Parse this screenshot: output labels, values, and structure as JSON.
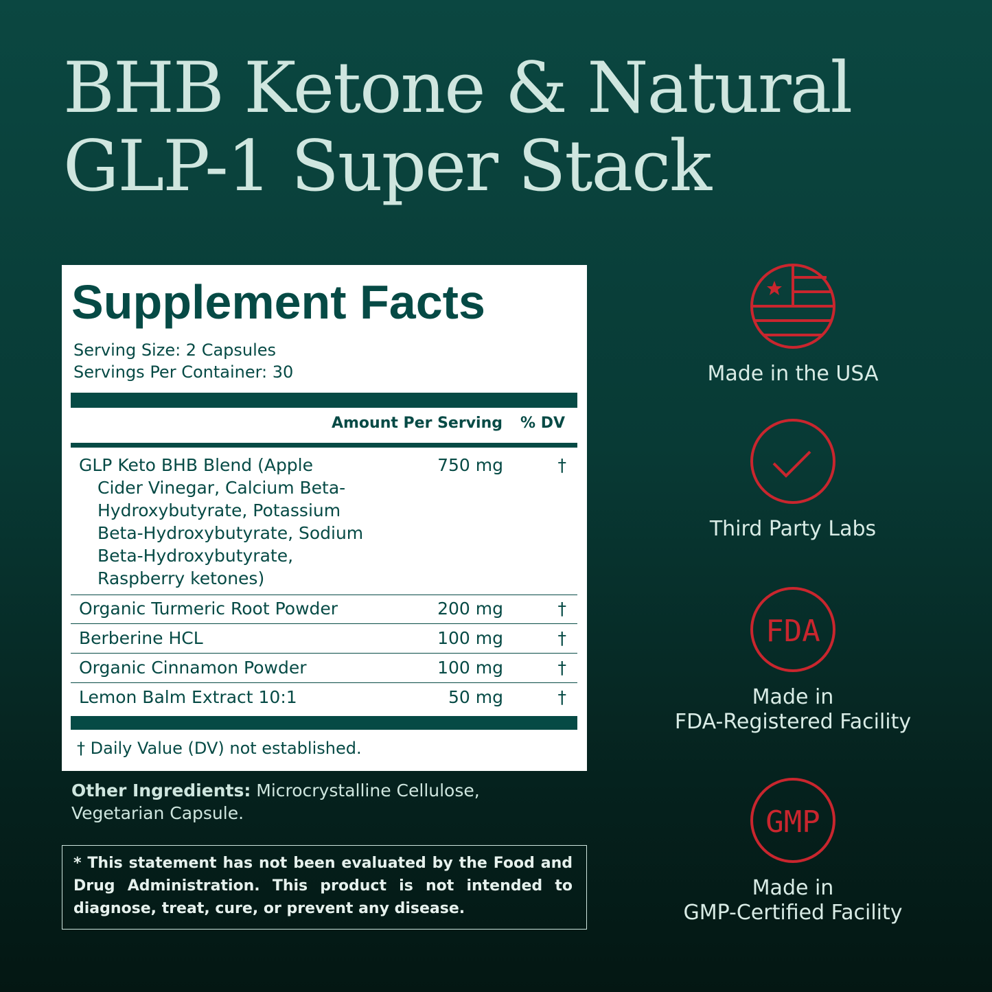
{
  "title": {
    "line1": "BHB Ketone & Natural",
    "line2": "GLP-1 Super Stack"
  },
  "facts": {
    "heading": "Supplement Facts",
    "serving_size": "Serving Size: 2 Capsules",
    "servings_per_container": "Servings Per Container: 30",
    "col_amount": "Amount Per Serving",
    "col_dv": "% DV",
    "rows": [
      {
        "name_lines": [
          "GLP Keto BHB Blend (Apple",
          "Cider Vinegar, Calcium Beta-",
          "Hydroxybutyrate, Potassium",
          "Beta-Hydroxybutyrate, Sodium",
          "Beta-Hydroxybutyrate,",
          "Raspberry ketones)"
        ],
        "amount": "750 mg",
        "dv": "†"
      },
      {
        "name": "Organic Turmeric Root Powder",
        "amount": "200 mg",
        "dv": "†"
      },
      {
        "name": "Berberine HCL",
        "amount": "100 mg",
        "dv": "†"
      },
      {
        "name": "Organic Cinnamon Powder",
        "amount": "100 mg",
        "dv": "†"
      },
      {
        "name": "Lemon Balm Extract 10:1",
        "amount": "50 mg",
        "dv": "†"
      }
    ],
    "footnote": "† Daily Value (DV) not established."
  },
  "other": {
    "label": "Other Ingredients:",
    "text": " Microcrystalline Cellulose, Vegetarian Capsule."
  },
  "disclaimer": "* This statement has not been evaluated by the Food and Drug Administration. This product is not intended to diagnose, treat, cure, or prevent any disease.",
  "badges": [
    {
      "icon": "usa-flag-icon",
      "line1": "Made in the USA"
    },
    {
      "icon": "check-icon",
      "line1": "Third Party Labs"
    },
    {
      "icon": "fda-icon",
      "icon_text": "FDA",
      "line1": "Made in",
      "line2": "FDA-Registered Facility"
    },
    {
      "icon": "gmp-icon",
      "icon_text": "GMP",
      "line1": "Made in",
      "line2": "GMP-Certified Facility"
    }
  ],
  "colors": {
    "accent_red": "#c9262e",
    "teal": "#064a45",
    "title": "#cfe6df"
  }
}
